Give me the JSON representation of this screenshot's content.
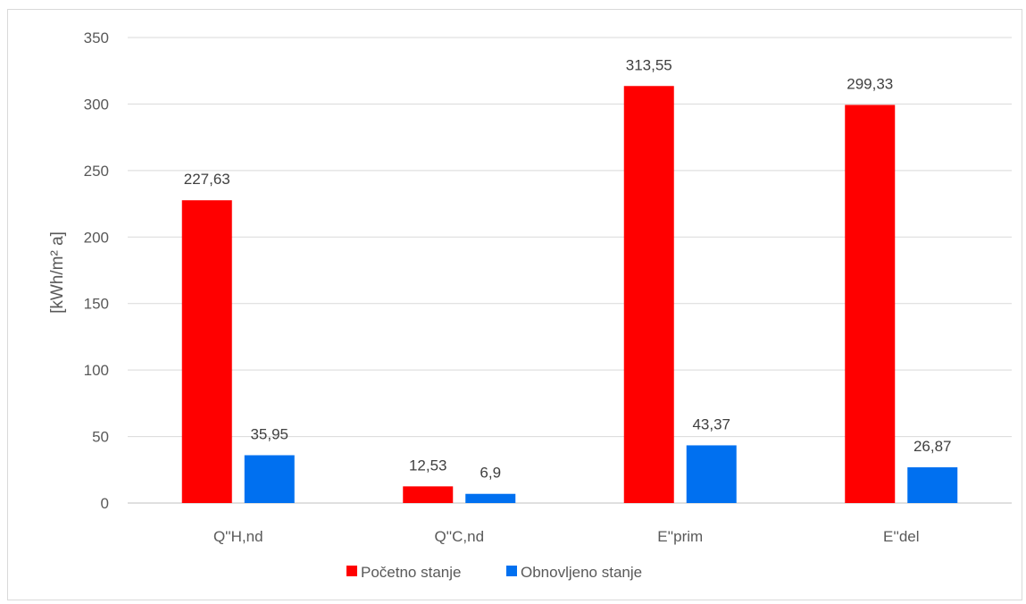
{
  "chart_data": {
    "type": "bar",
    "categories": [
      "Q''H,nd",
      "Q''C,nd",
      "E''prim",
      "E''del"
    ],
    "series": [
      {
        "name": "Početno stanje",
        "values": [
          227.63,
          12.53,
          313.55,
          299.33
        ],
        "labels": [
          "227,63",
          "12,53",
          "313,55",
          "299,33"
        ],
        "color": "#ff0000"
      },
      {
        "name": "Obnovljeno stanje",
        "values": [
          35.95,
          6.9,
          43.37,
          26.87
        ],
        "labels": [
          "35,95",
          "6,9",
          "43,37",
          "26,87"
        ],
        "color": "#0070f0"
      }
    ],
    "ylabel": "[kWh/m² a]",
    "ylim": [
      0,
      350
    ],
    "yticks": [
      "0",
      "50",
      "100",
      "150",
      "200",
      "250",
      "300",
      "350"
    ],
    "grid": true,
    "legend_position": "bottom"
  }
}
